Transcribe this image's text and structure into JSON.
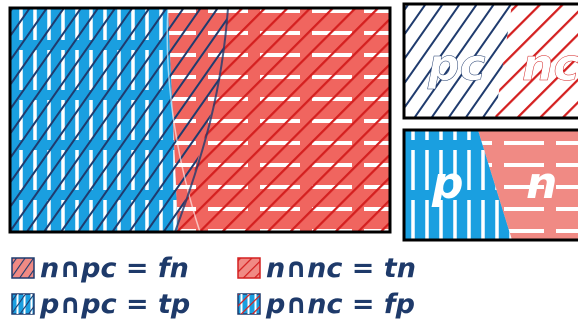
{
  "colors": {
    "blue": "#1a9fe0",
    "red": "#f0655f",
    "salmon": "#f08a84",
    "navy": "#1f3b6e",
    "dark_red": "#d42020",
    "white": "#ffffff",
    "black": "#000000"
  },
  "panels": {
    "top_right": {
      "left_label": "pc",
      "right_label": "nc"
    },
    "bottom_right": {
      "left_label": "p",
      "right_label": "n"
    }
  },
  "legend": [
    {
      "key": "fn",
      "text": "n∩pc = fn"
    },
    {
      "key": "tn",
      "text": "n∩nc = tn"
    },
    {
      "key": "tp",
      "text": "p∩pc = tp"
    },
    {
      "key": "fp",
      "text": "p∩nc = fp"
    }
  ]
}
